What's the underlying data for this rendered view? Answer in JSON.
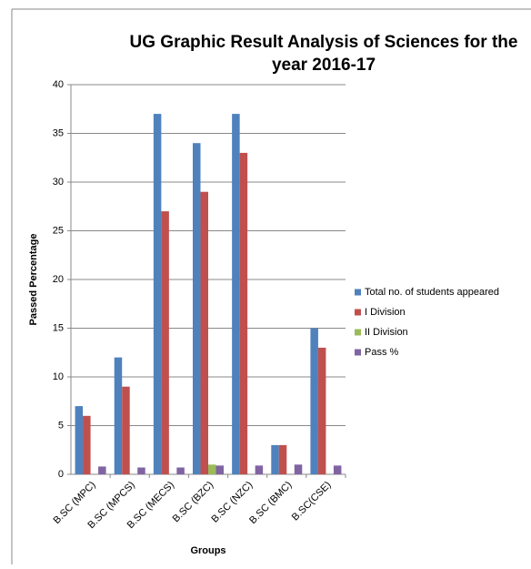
{
  "chart_data": {
    "type": "bar",
    "title": [
      "UG  Graphic Result Analysis of Sciences for the",
      "year 2016-17"
    ],
    "y_label": "Passed Percentage",
    "x_label": "Groups",
    "categories": [
      "B.SC (MPC)",
      "B.SC (MPCS)",
      "B.SC (MECS)",
      "B.SC (BZC)",
      "B.SC (NZC)",
      "B.SC (BMC)",
      "B.SC(CSE)"
    ],
    "series": [
      {
        "name": "Total no. of students appeared",
        "color": "#4f81bd",
        "values": [
          7,
          12,
          37,
          34,
          37,
          3,
          15
        ]
      },
      {
        "name": "I Division",
        "color": "#c0504d",
        "values": [
          6,
          9,
          27,
          29,
          33,
          3,
          13
        ]
      },
      {
        "name": "II Division",
        "color": "#9bbb59",
        "values": [
          0,
          0,
          0,
          1,
          0,
          0,
          0
        ]
      },
      {
        "name": "Pass %",
        "color": "#8064a2",
        "values": [
          0.8,
          0.7,
          0.7,
          0.9,
          0.9,
          1,
          0.9
        ]
      }
    ],
    "ylim": [
      0,
      40
    ],
    "yticks": [
      0,
      5,
      10,
      15,
      20,
      25,
      30,
      35,
      40
    ],
    "grid": true,
    "legend": "right"
  }
}
